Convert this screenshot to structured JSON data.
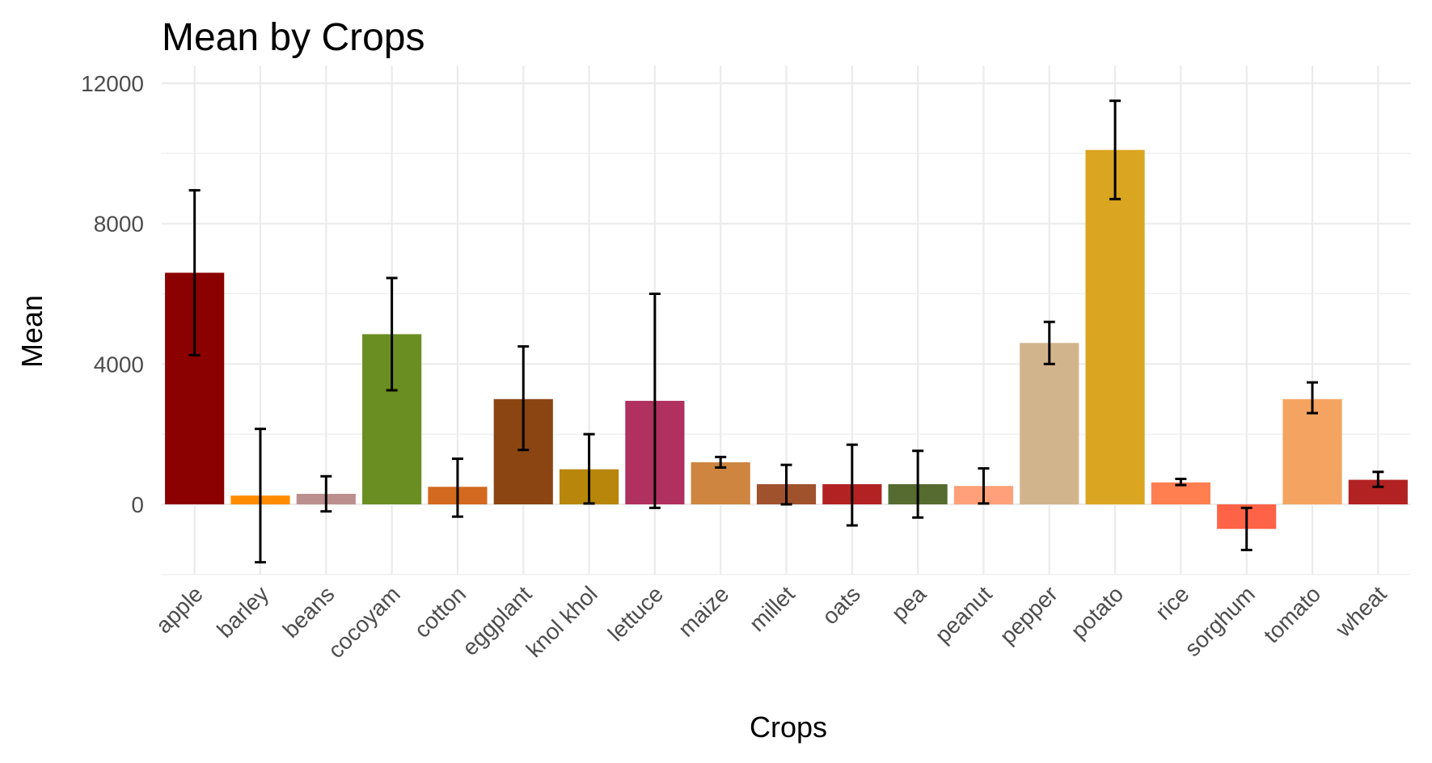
{
  "chart_data": {
    "type": "bar",
    "title": "Mean by Crops",
    "xlabel": "Crops",
    "ylabel": "Mean",
    "ylim": [
      -2000,
      12500
    ],
    "yticks": [
      0,
      4000,
      8000,
      12000
    ],
    "ytick_labels": [
      "0",
      "4000",
      "8000",
      "12000"
    ],
    "grid": true,
    "legend": "none",
    "categories": [
      "apple",
      "barley",
      "beans",
      "cocoyam",
      "cotton",
      "eggplant",
      "knol khol",
      "lettuce",
      "maize",
      "millet",
      "oats",
      "pea",
      "peanut",
      "pepper",
      "potato",
      "rice",
      "sorghum",
      "tomato",
      "wheat"
    ],
    "values": [
      6600,
      250,
      300,
      4850,
      500,
      3000,
      1000,
      2950,
      1200,
      575,
      575,
      575,
      525,
      4600,
      10100,
      625,
      -700,
      3000,
      700
    ],
    "error_low": [
      4250,
      -1650,
      -200,
      3250,
      -350,
      1550,
      25,
      -100,
      1050,
      0,
      -600,
      -375,
      25,
      4000,
      8700,
      550,
      -1300,
      2600,
      500
    ],
    "error_high": [
      8950,
      2150,
      800,
      6450,
      1300,
      4500,
      2000,
      6000,
      1350,
      1125,
      1700,
      1525,
      1025,
      5200,
      11500,
      725,
      -100,
      3475,
      925
    ],
    "colors": [
      "#8B0000",
      "#FF8C00",
      "#BC8F8F",
      "#6B8E23",
      "#D2691E",
      "#8B4513",
      "#B8860B",
      "#B03060",
      "#CD853F",
      "#A0522D",
      "#B22222",
      "#556B2F",
      "#FFA07A",
      "#D2B48C",
      "#DAA520",
      "#FF7F50",
      "#FF6347",
      "#F4A460",
      "#B22222"
    ]
  }
}
